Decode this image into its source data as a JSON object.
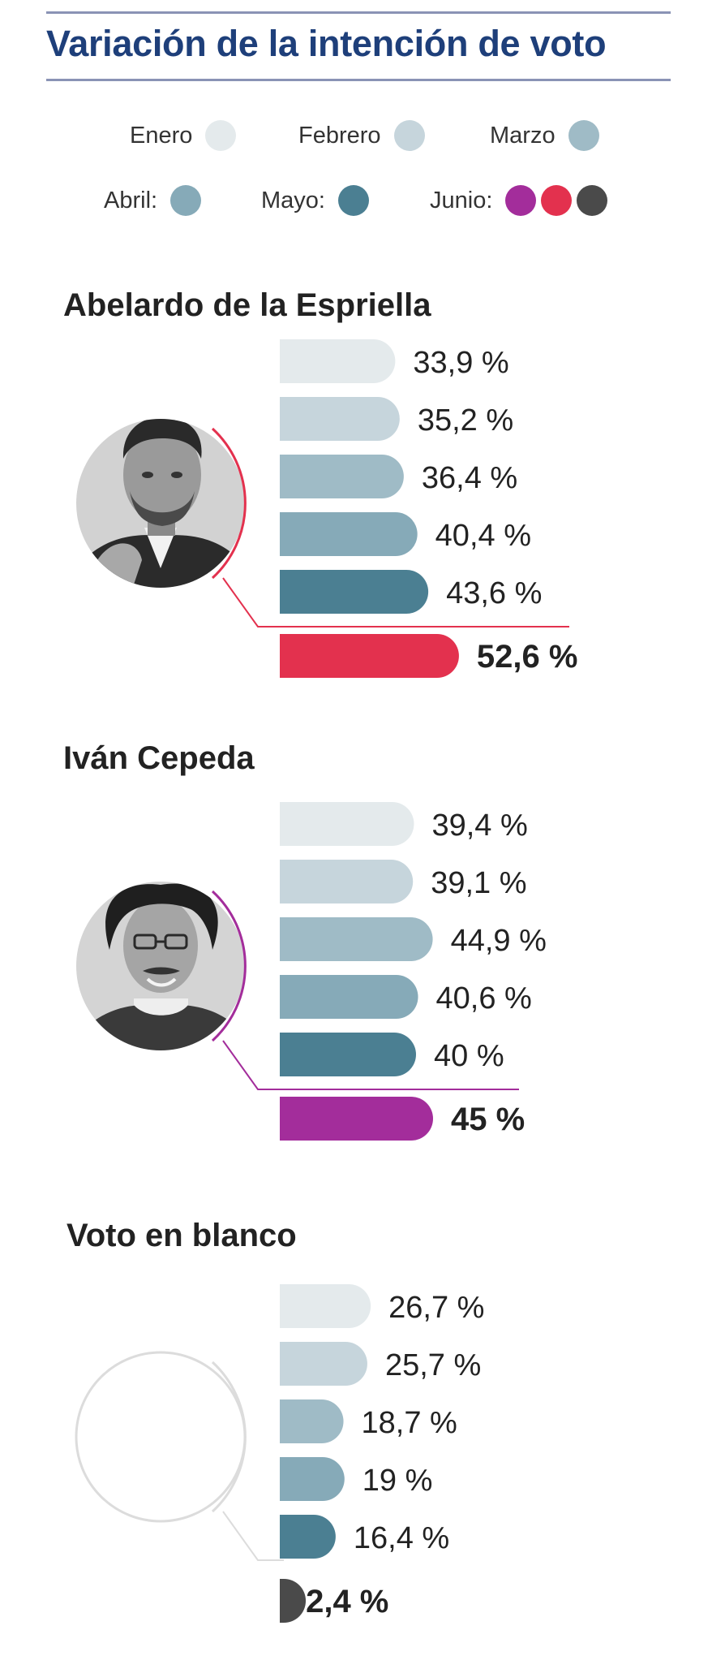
{
  "title": "Variación de la intención de voto",
  "legend": {
    "row1": [
      {
        "label": "Enero",
        "color": "#e4eaec"
      },
      {
        "label": "Febrero",
        "color": "#c6d5dc"
      },
      {
        "label": "Marzo",
        "color": "#9fbbc6"
      }
    ],
    "row2": [
      {
        "label": "Abril:",
        "color": "#86aab8"
      },
      {
        "label": "Mayo:",
        "color": "#4b7f92"
      },
      {
        "label": "Junio:",
        "colors": [
          "#a32d9b",
          "#e3314e",
          "#4a4a4a"
        ]
      }
    ]
  },
  "chart_data": [
    {
      "type": "bar",
      "title": "Abelardo de la Espriella",
      "categories": [
        "Enero",
        "Febrero",
        "Marzo",
        "Abril",
        "Mayo",
        "Junio"
      ],
      "values": [
        33.9,
        35.2,
        36.4,
        40.4,
        43.6,
        52.6
      ],
      "labels": [
        "33,9 %",
        "35,2 %",
        "36,4 %",
        "40,4 %",
        "43,6 %",
        "52,6 %"
      ],
      "highlight_color": "#e3314e",
      "portrait": "photo"
    },
    {
      "type": "bar",
      "title": "Iván Cepeda",
      "categories": [
        "Enero",
        "Febrero",
        "Marzo",
        "Abril",
        "Mayo",
        "Junio"
      ],
      "values": [
        39.4,
        39.1,
        44.9,
        40.6,
        40,
        45
      ],
      "labels": [
        "39,4 %",
        "39,1 %",
        "44,9 %",
        "40,6 %",
        "40 %",
        "45 %"
      ],
      "highlight_color": "#a32d9b",
      "portrait": "photo"
    },
    {
      "type": "bar",
      "title": "Voto en blanco",
      "categories": [
        "Enero",
        "Febrero",
        "Marzo",
        "Abril",
        "Mayo",
        "Junio"
      ],
      "values": [
        26.7,
        25.7,
        18.7,
        19,
        16.4,
        2.4
      ],
      "labels": [
        "26,7 %",
        "25,7 %",
        "18,7 %",
        "19 %",
        "16,4 %",
        "2,4 %"
      ],
      "highlight_color": "#4a4a4a",
      "portrait": "empty-circle"
    }
  ],
  "month_colors": [
    "#e4eaec",
    "#c6d5dc",
    "#9fbbc6",
    "#86aab8",
    "#4b7f92"
  ]
}
